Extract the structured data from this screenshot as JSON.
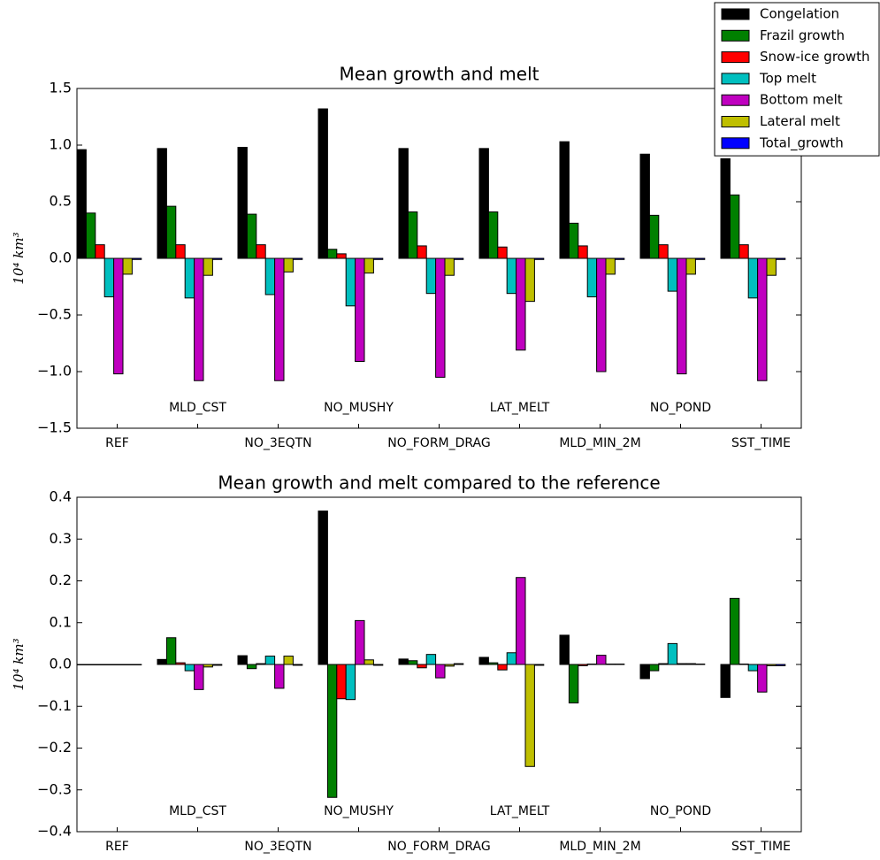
{
  "chart_data": [
    {
      "type": "bar",
      "title": "Mean growth and melt",
      "ylabel": "10⁴ km³",
      "categories": [
        "REF",
        "MLD_CST",
        "NO_3EQTN",
        "NO_MUSHY",
        "NO_FORM_DRAG",
        "LAT_MELT",
        "MLD_MIN_2M",
        "NO_POND",
        "SST_TIME"
      ],
      "ylim": [
        -1.5,
        1.5
      ],
      "yticks": [
        {
          "value": -1.5,
          "label": "−1.5"
        },
        {
          "value": -1,
          "label": "−1.0"
        },
        {
          "value": -0.5,
          "label": "−0.5"
        },
        {
          "value": 0,
          "label": "0.0"
        },
        0.5,
        {
          "value": 1,
          "label": "1.0"
        },
        1.5
      ],
      "legend": "upper right",
      "series": [
        {
          "name": "Congelation",
          "color": "#000000",
          "values": [
            0.96,
            0.97,
            0.98,
            1.32,
            0.97,
            0.97,
            1.03,
            0.92,
            0.88
          ]
        },
        {
          "name": "Frazil growth",
          "color": "#008000",
          "values": [
            0.4,
            0.46,
            0.39,
            0.08,
            0.41,
            0.41,
            0.31,
            0.38,
            0.56
          ]
        },
        {
          "name": "Snow-ice growth",
          "color": "#ff0000",
          "values": [
            0.12,
            0.12,
            0.12,
            0.04,
            0.11,
            0.1,
            0.11,
            0.12,
            0.12
          ]
        },
        {
          "name": "Top melt",
          "color": "#00bfbf",
          "values": [
            -0.34,
            -0.35,
            -0.32,
            -0.42,
            -0.31,
            -0.31,
            -0.34,
            -0.29,
            -0.35
          ]
        },
        {
          "name": "Bottom melt",
          "color": "#bf00bf",
          "values": [
            -1.02,
            -1.08,
            -1.08,
            -0.91,
            -1.05,
            -0.81,
            -1.0,
            -1.02,
            -1.08
          ]
        },
        {
          "name": "Lateral melt",
          "color": "#bfbf00",
          "values": [
            -0.14,
            -0.15,
            -0.12,
            -0.13,
            -0.15,
            -0.38,
            -0.14,
            -0.14,
            -0.15
          ]
        },
        {
          "name": "Total_growth",
          "color": "#0000ff",
          "values": [
            -0.01,
            -0.01,
            -0.01,
            -0.01,
            -0.01,
            -0.01,
            -0.01,
            -0.01,
            -0.01
          ]
        }
      ]
    },
    {
      "type": "bar",
      "title": "Mean growth and melt compared to the reference",
      "ylabel": "10⁴ km³",
      "categories": [
        "REF",
        "MLD_CST",
        "NO_3EQTN",
        "NO_MUSHY",
        "NO_FORM_DRAG",
        "LAT_MELT",
        "MLD_MIN_2M",
        "NO_POND",
        "SST_TIME"
      ],
      "ylim": [
        -0.4,
        0.4
      ],
      "yticks": [
        {
          "value": -0.4,
          "label": "−0.4"
        },
        {
          "value": -0.3,
          "label": "−0.3"
        },
        {
          "value": -0.2,
          "label": "−0.2"
        },
        {
          "value": -0.1,
          "label": "−0.1"
        },
        {
          "value": 0,
          "label": "0.0"
        },
        0.1,
        0.2,
        0.3,
        0.4
      ],
      "series": [
        {
          "color": "#000000",
          "values": [
            0,
            0.012,
            0.021,
            0.367,
            0.013,
            0.017,
            0.07,
            -0.034,
            -0.079
          ]
        },
        {
          "color": "#008000",
          "values": [
            0,
            0.064,
            -0.01,
            -0.318,
            0.009,
            0.004,
            -0.092,
            -0.015,
            0.158
          ]
        },
        {
          "color": "#ff0000",
          "values": [
            0,
            0.004,
            0.002,
            -0.082,
            -0.008,
            -0.013,
            -0.003,
            0.002,
            0.001
          ]
        },
        {
          "color": "#00bfbf",
          "values": [
            0,
            -0.015,
            0.02,
            -0.084,
            0.024,
            0.028,
            0.001,
            0.05,
            -0.015
          ]
        },
        {
          "color": "#bf00bf",
          "values": [
            0,
            -0.06,
            -0.057,
            0.105,
            -0.032,
            0.208,
            0.022,
            0.002,
            -0.066
          ]
        },
        {
          "color": "#bfbf00",
          "values": [
            0,
            -0.006,
            0.02,
            0.011,
            -0.004,
            -0.244,
            0.001,
            0.002,
            -0.003
          ]
        },
        {
          "color": "#0000ff",
          "values": [
            0,
            -0.002,
            -0.002,
            -0.002,
            0.002,
            -0.002,
            0.001,
            0.001,
            -0.003
          ]
        }
      ]
    }
  ]
}
